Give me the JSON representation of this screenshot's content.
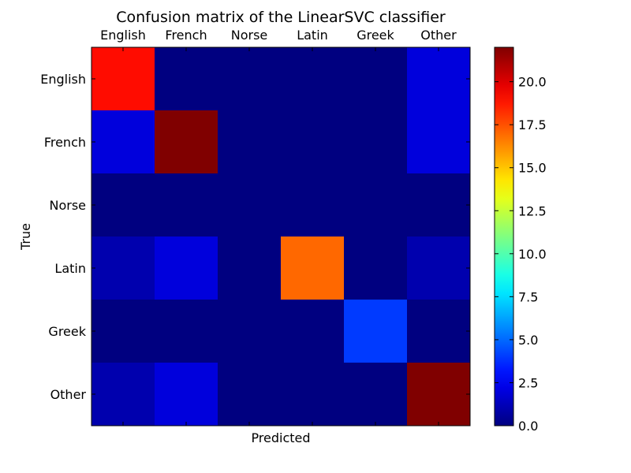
{
  "chart_data": {
    "type": "heatmap",
    "title": "Confusion matrix of the LinearSVC classifier",
    "xlabel": "Predicted",
    "ylabel": "True",
    "x_categories": [
      "English",
      "French",
      "Norse",
      "Latin",
      "Greek",
      "Other"
    ],
    "y_categories": [
      "English",
      "French",
      "Norse",
      "Latin",
      "Greek",
      "Other"
    ],
    "matrix": [
      [
        19,
        0,
        0,
        0,
        0,
        2
      ],
      [
        2,
        22,
        0,
        0,
        0,
        2
      ],
      [
        0,
        0,
        0,
        0,
        0,
        0
      ],
      [
        1,
        2,
        0,
        17,
        0,
        1
      ],
      [
        0,
        0,
        0,
        0,
        4,
        0
      ],
      [
        1,
        2,
        0,
        0,
        0,
        22
      ]
    ],
    "colormap": "jet",
    "value_range": [
      0,
      22
    ],
    "colorbar_ticks": [
      "0.0",
      "2.5",
      "5.0",
      "7.5",
      "10.0",
      "12.5",
      "15.0",
      "17.5",
      "20.0"
    ],
    "colorbar_tick_values": [
      0,
      2.5,
      5,
      7.5,
      10,
      12.5,
      15,
      17.5,
      20
    ],
    "x_tick_position": "top"
  }
}
